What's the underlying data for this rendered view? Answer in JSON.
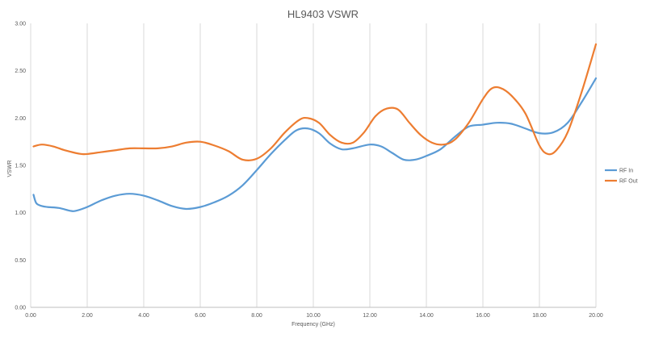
{
  "chart_data": {
    "type": "line",
    "title": "HL9403 VSWR",
    "xlabel": "Frequency (GHz)",
    "ylabel": "VSWR",
    "xlim": [
      0,
      20
    ],
    "ylim": [
      0,
      3
    ],
    "x_ticks": [
      "0.00",
      "2.00",
      "4.00",
      "6.00",
      "8.00",
      "10.00",
      "12.00",
      "14.00",
      "16.00",
      "18.00",
      "20.00"
    ],
    "y_ticks": [
      "0.00",
      "0.50",
      "1.00",
      "1.50",
      "2.00",
      "2.50",
      "3.00"
    ],
    "grid": "vertical",
    "legend_position": "right",
    "series": [
      {
        "name": "RF In",
        "color": "#5B9BD5",
        "points": [
          [
            0.1,
            1.19
          ],
          [
            0.2,
            1.1
          ],
          [
            0.4,
            1.07
          ],
          [
            0.6,
            1.06
          ],
          [
            1.0,
            1.05
          ],
          [
            1.4,
            1.02
          ],
          [
            1.6,
            1.02
          ],
          [
            2.0,
            1.06
          ],
          [
            2.5,
            1.13
          ],
          [
            3.0,
            1.18
          ],
          [
            3.5,
            1.2
          ],
          [
            4.0,
            1.18
          ],
          [
            4.5,
            1.13
          ],
          [
            5.0,
            1.07
          ],
          [
            5.5,
            1.04
          ],
          [
            6.0,
            1.06
          ],
          [
            6.5,
            1.11
          ],
          [
            7.0,
            1.18
          ],
          [
            7.5,
            1.29
          ],
          [
            8.0,
            1.45
          ],
          [
            8.5,
            1.62
          ],
          [
            9.0,
            1.77
          ],
          [
            9.4,
            1.87
          ],
          [
            9.8,
            1.89
          ],
          [
            10.2,
            1.84
          ],
          [
            10.6,
            1.73
          ],
          [
            11.0,
            1.67
          ],
          [
            11.4,
            1.68
          ],
          [
            12.0,
            1.72
          ],
          [
            12.4,
            1.7
          ],
          [
            12.8,
            1.63
          ],
          [
            13.2,
            1.56
          ],
          [
            13.6,
            1.56
          ],
          [
            14.0,
            1.6
          ],
          [
            14.5,
            1.67
          ],
          [
            15.0,
            1.8
          ],
          [
            15.5,
            1.91
          ],
          [
            16.0,
            1.93
          ],
          [
            16.5,
            1.95
          ],
          [
            17.0,
            1.94
          ],
          [
            17.5,
            1.89
          ],
          [
            18.0,
            1.84
          ],
          [
            18.5,
            1.85
          ],
          [
            19.0,
            1.95
          ],
          [
            19.5,
            2.17
          ],
          [
            20.0,
            2.42
          ]
        ]
      },
      {
        "name": "RF Out",
        "color": "#ED7D31",
        "points": [
          [
            0.1,
            1.7
          ],
          [
            0.4,
            1.72
          ],
          [
            0.8,
            1.7
          ],
          [
            1.2,
            1.66
          ],
          [
            1.6,
            1.63
          ],
          [
            1.8,
            1.62
          ],
          [
            2.0,
            1.62
          ],
          [
            2.5,
            1.64
          ],
          [
            3.0,
            1.66
          ],
          [
            3.5,
            1.68
          ],
          [
            4.0,
            1.68
          ],
          [
            4.5,
            1.68
          ],
          [
            5.0,
            1.7
          ],
          [
            5.5,
            1.74
          ],
          [
            6.0,
            1.75
          ],
          [
            6.5,
            1.71
          ],
          [
            7.0,
            1.65
          ],
          [
            7.5,
            1.56
          ],
          [
            8.0,
            1.57
          ],
          [
            8.5,
            1.68
          ],
          [
            9.0,
            1.85
          ],
          [
            9.5,
            1.98
          ],
          [
            9.8,
            2.0
          ],
          [
            10.2,
            1.95
          ],
          [
            10.6,
            1.82
          ],
          [
            11.0,
            1.74
          ],
          [
            11.4,
            1.74
          ],
          [
            11.8,
            1.85
          ],
          [
            12.2,
            2.02
          ],
          [
            12.6,
            2.1
          ],
          [
            13.0,
            2.09
          ],
          [
            13.4,
            1.95
          ],
          [
            13.8,
            1.82
          ],
          [
            14.2,
            1.74
          ],
          [
            14.6,
            1.72
          ],
          [
            15.0,
            1.77
          ],
          [
            15.5,
            1.95
          ],
          [
            16.0,
            2.2
          ],
          [
            16.3,
            2.31
          ],
          [
            16.6,
            2.32
          ],
          [
            17.0,
            2.24
          ],
          [
            17.5,
            2.05
          ],
          [
            18.0,
            1.71
          ],
          [
            18.3,
            1.62
          ],
          [
            18.6,
            1.66
          ],
          [
            19.0,
            1.85
          ],
          [
            19.5,
            2.28
          ],
          [
            20.0,
            2.78
          ]
        ]
      }
    ]
  }
}
